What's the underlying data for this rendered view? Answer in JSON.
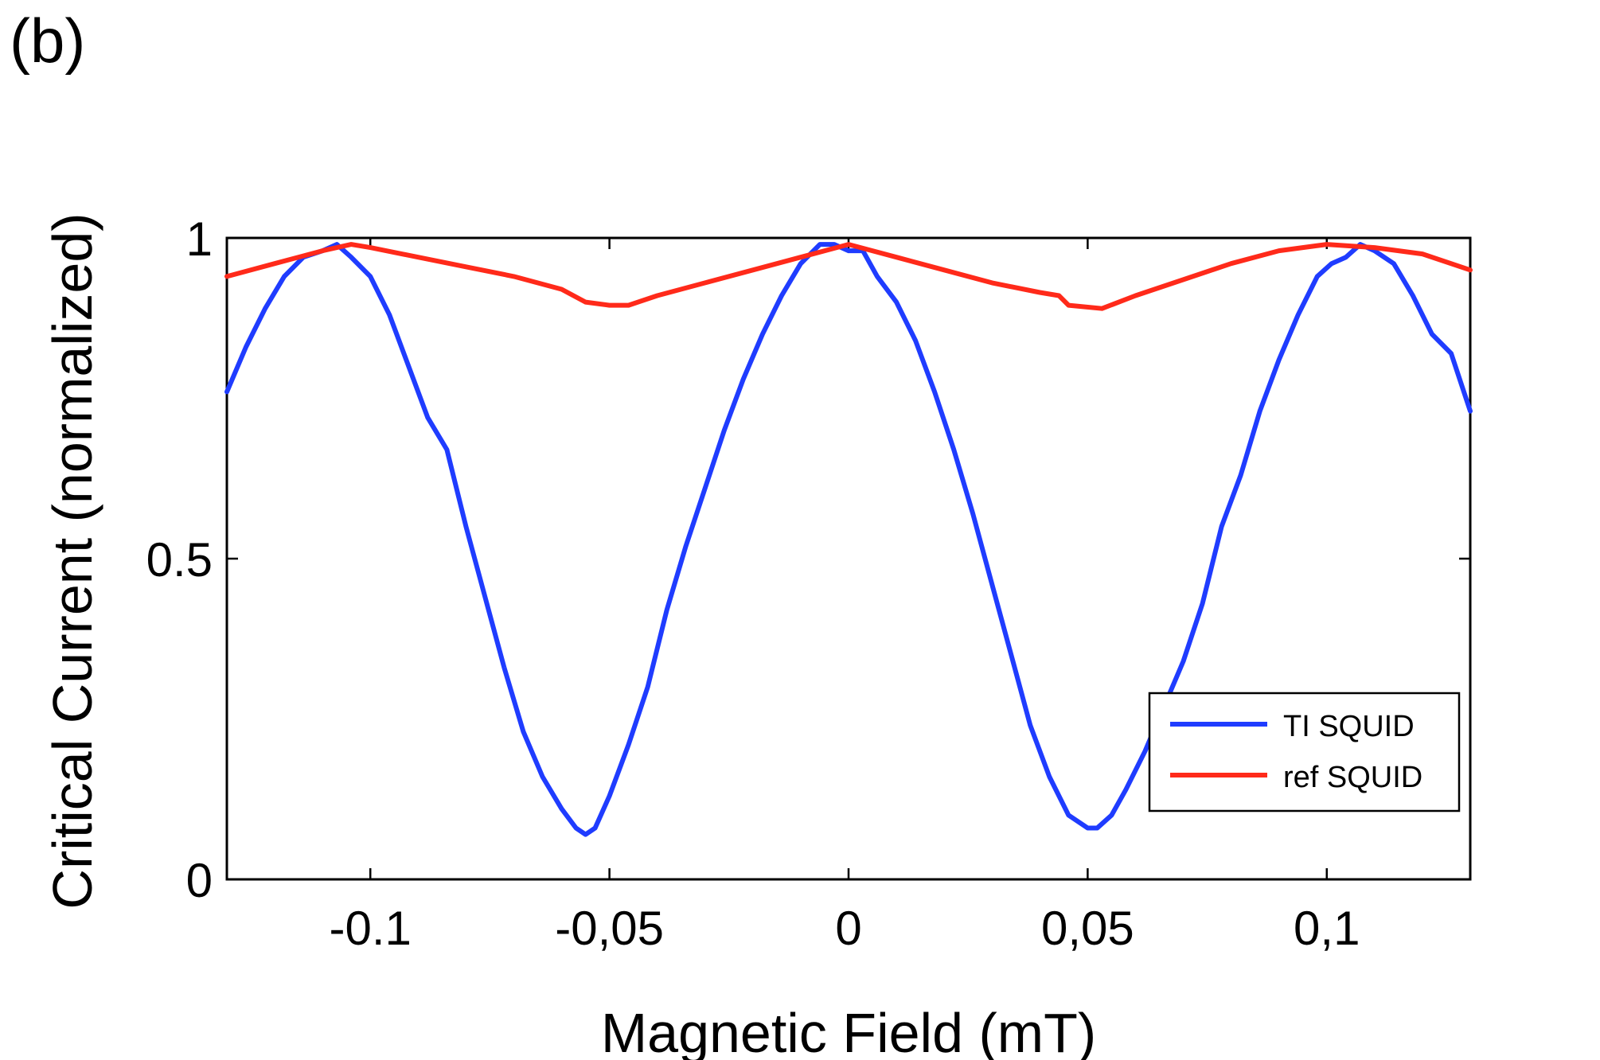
{
  "chart_data": {
    "type": "line",
    "panel_label": "(b)",
    "xlabel": "Magnetic Field (mT)",
    "ylabel": "Critical Current (normalized)",
    "xlim": [
      -0.13,
      0.13
    ],
    "ylim": [
      0,
      1
    ],
    "x_ticks": [
      {
        "value": -0.1,
        "label": "-0.1"
      },
      {
        "value": -0.05,
        "label": "-0,05"
      },
      {
        "value": 0,
        "label": "0"
      },
      {
        "value": 0.05,
        "label": "0,05"
      },
      {
        "value": 0.1,
        "label": "0,1"
      }
    ],
    "y_ticks": [
      {
        "value": 0,
        "label": "0"
      },
      {
        "value": 0.5,
        "label": "0.5"
      },
      {
        "value": 1,
        "label": "1"
      }
    ],
    "grid": false,
    "legend_position": "bottom-right",
    "series": [
      {
        "name": "TI SQUID",
        "color": "#1f3cff",
        "x": [
          -0.13,
          -0.126,
          -0.122,
          -0.118,
          -0.114,
          -0.11,
          -0.107,
          -0.104,
          -0.1,
          -0.096,
          -0.092,
          -0.088,
          -0.084,
          -0.08,
          -0.076,
          -0.072,
          -0.068,
          -0.064,
          -0.06,
          -0.057,
          -0.055,
          -0.053,
          -0.05,
          -0.046,
          -0.042,
          -0.038,
          -0.034,
          -0.03,
          -0.026,
          -0.022,
          -0.018,
          -0.014,
          -0.01,
          -0.006,
          -0.003,
          0,
          0.003,
          0.006,
          0.01,
          0.014,
          0.018,
          0.022,
          0.026,
          0.03,
          0.034,
          0.038,
          0.042,
          0.046,
          0.05,
          0.052,
          0.055,
          0.058,
          0.062,
          0.066,
          0.07,
          0.074,
          0.078,
          0.082,
          0.086,
          0.09,
          0.094,
          0.098,
          0.101,
          0.104,
          0.107,
          0.11,
          0.114,
          0.118,
          0.122,
          0.126,
          0.13
        ],
        "y": [
          0.76,
          0.83,
          0.89,
          0.94,
          0.97,
          0.98,
          0.99,
          0.97,
          0.94,
          0.88,
          0.8,
          0.72,
          0.67,
          0.55,
          0.44,
          0.33,
          0.23,
          0.16,
          0.11,
          0.08,
          0.07,
          0.08,
          0.13,
          0.21,
          0.3,
          0.42,
          0.52,
          0.61,
          0.7,
          0.78,
          0.85,
          0.91,
          0.96,
          0.99,
          0.99,
          0.98,
          0.98,
          0.94,
          0.9,
          0.84,
          0.76,
          0.67,
          0.57,
          0.46,
          0.35,
          0.24,
          0.16,
          0.1,
          0.08,
          0.08,
          0.1,
          0.14,
          0.2,
          0.27,
          0.34,
          0.43,
          0.55,
          0.63,
          0.73,
          0.81,
          0.88,
          0.94,
          0.96,
          0.97,
          0.99,
          0.98,
          0.96,
          0.91,
          0.85,
          0.82,
          0.73
        ]
      },
      {
        "name": "ref SQUID",
        "color": "#ff2a1a",
        "x": [
          -0.13,
          -0.12,
          -0.11,
          -0.104,
          -0.1,
          -0.09,
          -0.08,
          -0.07,
          -0.06,
          -0.055,
          -0.05,
          -0.046,
          -0.04,
          -0.03,
          -0.02,
          -0.01,
          0,
          0.01,
          0.02,
          0.03,
          0.04,
          0.044,
          0.046,
          0.053,
          0.06,
          0.07,
          0.08,
          0.09,
          0.1,
          0.11,
          0.12,
          0.13
        ],
        "y": [
          0.94,
          0.96,
          0.98,
          0.99,
          0.985,
          0.97,
          0.955,
          0.94,
          0.92,
          0.9,
          0.895,
          0.895,
          0.91,
          0.93,
          0.95,
          0.97,
          0.99,
          0.97,
          0.95,
          0.93,
          0.915,
          0.91,
          0.895,
          0.89,
          0.91,
          0.935,
          0.96,
          0.98,
          0.99,
          0.985,
          0.975,
          0.95
        ]
      }
    ]
  }
}
